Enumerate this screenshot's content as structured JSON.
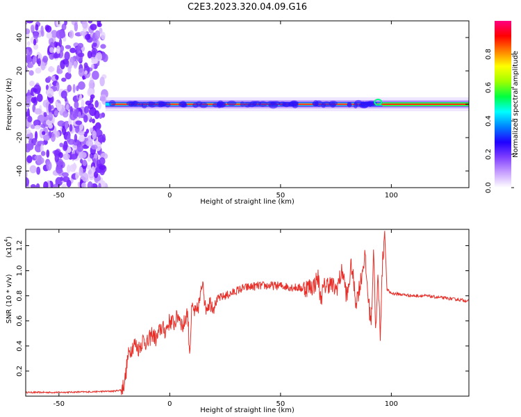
{
  "title": "C2E3.2023.320.04.09.G16",
  "chart_data": [
    {
      "type": "heatmap",
      "xlabel": "Height of straight line (km)",
      "ylabel": "Frequency (Hz)",
      "xlim": [
        -65,
        135
      ],
      "ylim": [
        -50,
        50
      ],
      "xticks": [
        -50,
        0,
        50,
        100
      ],
      "yticks": [
        -40,
        -20,
        0,
        20,
        40
      ],
      "description_free": true,
      "noise_region_x": [
        -65,
        -29
      ],
      "signal_start_x": -29,
      "signal_line_freq_hz": 0,
      "grid": false,
      "colorbar": {
        "label": "Normalized spectral amplitude",
        "range": [
          0.0,
          1.0
        ],
        "ticks": [
          0.0,
          0.2,
          0.4,
          0.6,
          0.8
        ],
        "colors": [
          "#ffffff",
          "#c8a0ff",
          "#8040ff",
          "#2000ff",
          "#0080ff",
          "#00ffff",
          "#00ff40",
          "#a0ff00",
          "#ffff00",
          "#ff8000",
          "#ff0000",
          "#ff0080"
        ]
      }
    },
    {
      "type": "line",
      "xlabel": "Height of straight line (km)",
      "ylabel": "SNR (10 * v/v)",
      "y_multiplier_label": "(x10",
      "y_multiplier_exp": "4",
      "xlim": [
        -65,
        135
      ],
      "ylim": [
        0,
        1.33
      ],
      "xticks": [
        -50,
        0,
        50,
        100
      ],
      "yticks": [
        0.2,
        0.4,
        0.6,
        0.8,
        1.0,
        1.2
      ],
      "grid": false,
      "series_color": "#e8302a",
      "series": [
        {
          "x": [
            -65,
            -50,
            -35,
            -25,
            -22,
            -21,
            -20,
            -19,
            -18,
            -16,
            -14,
            -12,
            -10,
            -8,
            -6,
            -4,
            -2,
            0,
            2,
            4,
            6,
            8,
            9,
            10,
            12,
            14,
            15,
            16,
            18,
            20,
            22,
            25,
            28,
            30,
            33,
            36,
            40,
            45,
            50,
            55,
            60,
            65,
            67,
            68,
            70,
            72,
            75,
            78,
            80,
            82,
            84,
            86,
            88,
            90,
            91,
            92,
            93,
            94,
            95,
            96,
            97,
            98,
            100,
            105,
            110,
            115,
            120,
            125,
            130,
            135
          ],
          "y": [
            0.03,
            0.03,
            0.035,
            0.04,
            0.05,
            0.08,
            0.15,
            0.3,
            0.36,
            0.42,
            0.38,
            0.45,
            0.42,
            0.5,
            0.45,
            0.55,
            0.52,
            0.6,
            0.58,
            0.65,
            0.55,
            0.68,
            0.35,
            0.7,
            0.65,
            0.8,
            0.95,
            0.7,
            0.75,
            0.72,
            0.78,
            0.8,
            0.82,
            0.84,
            0.86,
            0.87,
            0.88,
            0.88,
            0.88,
            0.87,
            0.86,
            0.88,
            0.95,
            0.78,
            0.88,
            0.9,
            0.85,
            1.0,
            0.78,
            1.05,
            0.75,
            0.9,
            1.12,
            0.7,
            0.6,
            1.2,
            0.5,
            0.95,
            0.5,
            1.05,
            1.32,
            0.85,
            0.82,
            0.81,
            0.8,
            0.8,
            0.79,
            0.78,
            0.77,
            0.76
          ]
        }
      ]
    }
  ]
}
